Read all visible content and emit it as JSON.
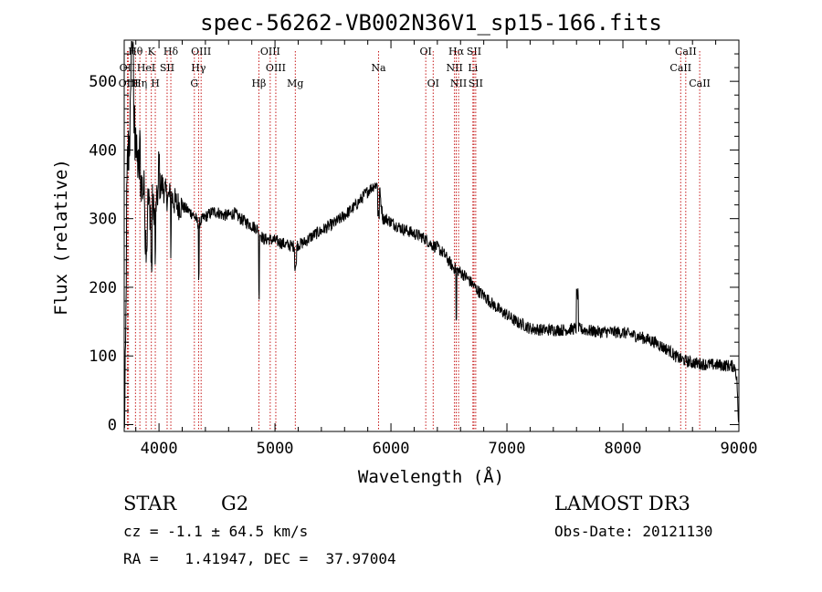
{
  "chart_data": {
    "type": "line",
    "title": "spec-56262-VB002N36V1_sp15-166.fits",
    "xlabel": "Wavelength (Å)",
    "ylabel": "Flux (relative)",
    "xlim": [
      3700,
      9000
    ],
    "ylim": [
      -10,
      560
    ],
    "xticks": [
      4000,
      5000,
      6000,
      7000,
      8000,
      9000
    ],
    "xtick_labels": [
      "4000",
      "5000",
      "6000",
      "7000",
      "8000",
      "9000"
    ],
    "yticks": [
      0,
      100,
      200,
      300,
      400,
      500
    ],
    "ytick_labels": [
      "0",
      "100",
      "200",
      "300",
      "400",
      "500"
    ],
    "grid": false,
    "series": [
      {
        "name": "spectrum",
        "color": "#000000",
        "anchors": [
          [
            3700,
            0
          ],
          [
            3705,
            20
          ],
          [
            3710,
            60
          ],
          [
            3715,
            150
          ],
          [
            3720,
            300
          ],
          [
            3730,
            380
          ],
          [
            3745,
            420
          ],
          [
            3760,
            460
          ],
          [
            3775,
            440
          ],
          [
            3790,
            430
          ],
          [
            3800,
            400
          ],
          [
            3815,
            380
          ],
          [
            3830,
            370
          ],
          [
            3850,
            350
          ],
          [
            3870,
            340
          ],
          [
            3890,
            330
          ],
          [
            3910,
            320
          ],
          [
            3930,
            315
          ],
          [
            3950,
            320
          ],
          [
            3965,
            305
          ],
          [
            3980,
            325
          ],
          [
            4000,
            345
          ],
          [
            4020,
            350
          ],
          [
            4040,
            345
          ],
          [
            4060,
            335
          ],
          [
            4080,
            330
          ],
          [
            4100,
            335
          ],
          [
            4130,
            325
          ],
          [
            4160,
            320
          ],
          [
            4200,
            318
          ],
          [
            4250,
            312
          ],
          [
            4300,
            305
          ],
          [
            4340,
            292
          ],
          [
            4380,
            300
          ],
          [
            4420,
            305
          ],
          [
            4460,
            310
          ],
          [
            4500,
            310
          ],
          [
            4550,
            305
          ],
          [
            4600,
            305
          ],
          [
            4650,
            308
          ],
          [
            4700,
            300
          ],
          [
            4750,
            295
          ],
          [
            4800,
            290
          ],
          [
            4850,
            285
          ],
          [
            4900,
            270
          ],
          [
            4950,
            270
          ],
          [
            5000,
            268
          ],
          [
            5050,
            265
          ],
          [
            5100,
            262
          ],
          [
            5150,
            260
          ],
          [
            5200,
            262
          ],
          [
            5250,
            265
          ],
          [
            5300,
            272
          ],
          [
            5350,
            278
          ],
          [
            5400,
            282
          ],
          [
            5450,
            288
          ],
          [
            5500,
            292
          ],
          [
            5550,
            298
          ],
          [
            5600,
            305
          ],
          [
            5650,
            312
          ],
          [
            5700,
            320
          ],
          [
            5750,
            330
          ],
          [
            5800,
            340
          ],
          [
            5850,
            348
          ],
          [
            5880,
            350
          ],
          [
            5900,
            345
          ],
          [
            5930,
            300
          ],
          [
            5960,
            300
          ],
          [
            6000,
            295
          ],
          [
            6050,
            290
          ],
          [
            6100,
            285
          ],
          [
            6150,
            282
          ],
          [
            6200,
            278
          ],
          [
            6250,
            275
          ],
          [
            6300,
            270
          ],
          [
            6350,
            262
          ],
          [
            6400,
            258
          ],
          [
            6450,
            250
          ],
          [
            6500,
            238
          ],
          [
            6530,
            230
          ],
          [
            6600,
            222
          ],
          [
            6650,
            215
          ],
          [
            6700,
            205
          ],
          [
            6750,
            195
          ],
          [
            6800,
            188
          ],
          [
            6850,
            180
          ],
          [
            6900,
            172
          ],
          [
            6950,
            165
          ],
          [
            7000,
            160
          ],
          [
            7050,
            153
          ],
          [
            7100,
            148
          ],
          [
            7150,
            145
          ],
          [
            7200,
            140
          ],
          [
            7300,
            138
          ],
          [
            7400,
            138
          ],
          [
            7500,
            138
          ],
          [
            7600,
            140
          ],
          [
            7700,
            137
          ],
          [
            7800,
            135
          ],
          [
            7900,
            135
          ],
          [
            8000,
            134
          ],
          [
            8100,
            130
          ],
          [
            8200,
            125
          ],
          [
            8250,
            122
          ],
          [
            8300,
            118
          ],
          [
            8350,
            112
          ],
          [
            8400,
            108
          ],
          [
            8450,
            100
          ],
          [
            8500,
            95
          ],
          [
            8600,
            90
          ],
          [
            8700,
            88
          ],
          [
            8800,
            87
          ],
          [
            8900,
            86
          ],
          [
            8950,
            85
          ],
          [
            8970,
            83
          ],
          [
            8985,
            60
          ],
          [
            8995,
            5
          ],
          [
            9000,
            0
          ]
        ],
        "features": [
          [
            3760,
            3780,
            120
          ],
          [
            3795,
            3800,
            50
          ],
          [
            3830,
            3840,
            40
          ],
          [
            3880,
            3900,
            -60
          ],
          [
            3930,
            3940,
            -80
          ],
          [
            3965,
            3972,
            -70
          ],
          [
            3995,
            4005,
            40
          ],
          [
            4100,
            4105,
            -40
          ],
          [
            4101,
            4102,
            -55
          ],
          [
            4340,
            4345,
            -80
          ],
          [
            4861,
            4864,
            -90
          ],
          [
            5170,
            5185,
            -30
          ],
          [
            5885,
            5900,
            -40
          ],
          [
            6560,
            6566,
            -75
          ],
          [
            7600,
            7615,
            50
          ]
        ]
      }
    ],
    "line_markers": [
      {
        "label": "Hθ",
        "wavelength": 3797,
        "row": 1
      },
      {
        "label": "OII",
        "wavelength": 3727,
        "row": 2
      },
      {
        "label": "OIII",
        "wavelength": 3737,
        "row": 3
      },
      {
        "label": "K",
        "wavelength": 3934,
        "row": 1
      },
      {
        "label": "HeI",
        "wavelength": 3889,
        "row": 2
      },
      {
        "label": "Hη",
        "wavelength": 3835,
        "row": 3
      },
      {
        "label": "H",
        "wavelength": 3968,
        "row": 3
      },
      {
        "label": "Hδ",
        "wavelength": 4102,
        "row": 1
      },
      {
        "label": "SII",
        "wavelength": 4070,
        "row": 2
      },
      {
        "label": "OIII",
        "wavelength": 4363,
        "row": 1
      },
      {
        "label": "Hγ",
        "wavelength": 4341,
        "row": 2
      },
      {
        "label": "G",
        "wavelength": 4305,
        "row": 3
      },
      {
        "label": "Hβ",
        "wavelength": 4861,
        "row": 3
      },
      {
        "label": "OIII",
        "wavelength": 4959,
        "row": 1
      },
      {
        "label": "OIII",
        "wavelength": 5007,
        "row": 2
      },
      {
        "label": "Mg",
        "wavelength": 5175,
        "row": 3
      },
      {
        "label": "Na",
        "wavelength": 5893,
        "row": 2
      },
      {
        "label": "OI",
        "wavelength": 6300,
        "row": 1
      },
      {
        "label": "OI",
        "wavelength": 6364,
        "row": 3
      },
      {
        "label": "Hα",
        "wavelength": 6563,
        "row": 1
      },
      {
        "label": "NII",
        "wavelength": 6548,
        "row": 2
      },
      {
        "label": "NII",
        "wavelength": 6583,
        "row": 3
      },
      {
        "label": "SII",
        "wavelength": 6716,
        "row": 1
      },
      {
        "label": "Li",
        "wavelength": 6707,
        "row": 2
      },
      {
        "label": "SII",
        "wavelength": 6731,
        "row": 3
      },
      {
        "label": "CaII",
        "wavelength": 8542,
        "row": 1
      },
      {
        "label": "CaII",
        "wavelength": 8498,
        "row": 2
      },
      {
        "label": "CaII",
        "wavelength": 8662,
        "row": 3
      }
    ]
  },
  "info": {
    "object_class": "STAR",
    "subclass": "G2",
    "redshift_line": "cz = -1.1 ± 64.5 km/s",
    "coords_line": "RA =   1.41947, DEC =  37.97004",
    "survey": "LAMOST DR3",
    "obs_date_line": "Obs-Date: 20121130"
  }
}
